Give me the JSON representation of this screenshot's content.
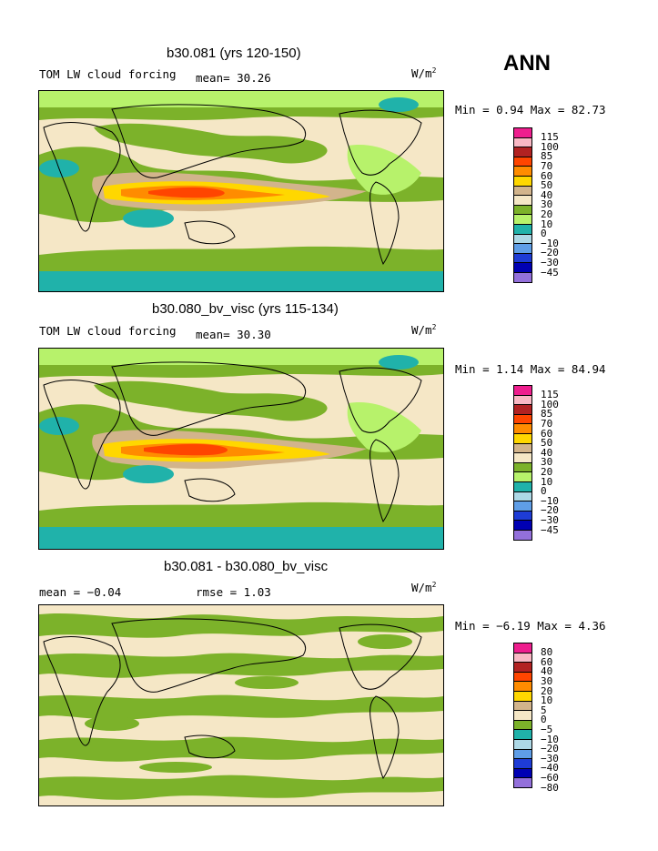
{
  "season": "ANN",
  "palettes": {
    "abs": [
      "#ee1e8e",
      "#f9b8c4",
      "#b22222",
      "#ff4500",
      "#ff8c00",
      "#ffd700",
      "#d2b48c",
      "#f5e7c6",
      "#7cb22a",
      "#b7f26b",
      "#20b2aa",
      "#add8e6",
      "#5f9ee7",
      "#1e3cd6",
      "#0000b3",
      "#9370db"
    ],
    "diff": [
      "#ee1e8e",
      "#f9b8c4",
      "#b22222",
      "#ff4500",
      "#ff8c00",
      "#ffd700",
      "#d2b48c",
      "#f5e7c6",
      "#7cb22a",
      "#20b2aa",
      "#add8e6",
      "#5f9ee7",
      "#1e3cd6",
      "#0000b3",
      "#9370db"
    ]
  },
  "panels": [
    {
      "title": "b30.081 (yrs 120-150)",
      "variable": "TOM LW cloud forcing",
      "stat1": "mean=  30.26",
      "stat2": "",
      "units": "W/m",
      "units_exp": "2",
      "minmax": "Min =   0.94 Max =  82.73",
      "kind": "abs",
      "levels": [
        "115",
        "100",
        "85",
        "70",
        "60",
        "50",
        "40",
        "30",
        "20",
        "10",
        "0",
        "−10",
        "−20",
        "−30",
        "−45"
      ]
    },
    {
      "title": "b30.080_bv_visc (yrs 115-134)",
      "variable": "TOM LW cloud forcing",
      "stat1": "mean=  30.30",
      "stat2": "",
      "units": "W/m",
      "units_exp": "2",
      "minmax": "Min =   1.14 Max =  84.94",
      "kind": "abs",
      "levels": [
        "115",
        "100",
        "85",
        "70",
        "60",
        "50",
        "40",
        "30",
        "20",
        "10",
        "0",
        "−10",
        "−20",
        "−30",
        "−45"
      ]
    },
    {
      "title": "b30.081 - b30.080_bv_visc",
      "variable": "",
      "stat1": "mean =  −0.04",
      "stat2": "rmse =   1.03",
      "units": "W/m",
      "units_exp": "2",
      "minmax": "Min =  −6.19 Max =   4.36",
      "kind": "diff",
      "levels": [
        "80",
        "60",
        "40",
        "30",
        "20",
        "10",
        "5",
        "0",
        "−5",
        "−10",
        "−20",
        "−30",
        "−40",
        "−60",
        "−80"
      ]
    }
  ]
}
